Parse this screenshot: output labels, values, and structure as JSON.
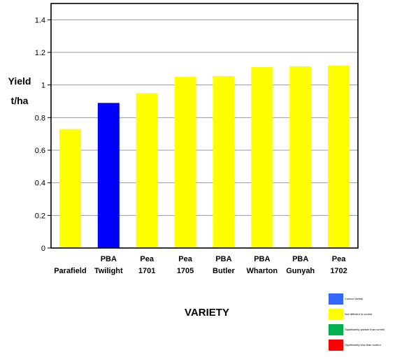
{
  "chart_data": {
    "type": "bar",
    "categories": [
      [
        "",
        "Parafield"
      ],
      [
        "PBA",
        "Twilight"
      ],
      [
        "Pea",
        "1701"
      ],
      [
        "Pea",
        "1705"
      ],
      [
        "PBA",
        "Butler"
      ],
      [
        "PBA",
        "Wharton"
      ],
      [
        "PBA",
        "Gunyah"
      ],
      [
        "Pea",
        "1702"
      ]
    ],
    "values": [
      0.73,
      0.89,
      0.95,
      1.05,
      1.055,
      1.11,
      1.115,
      1.12
    ],
    "bar_colors": [
      "#ffff00",
      "#0000ff",
      "#ffff00",
      "#ffff00",
      "#ffff00",
      "#ffff00",
      "#ffff00",
      "#ffff00"
    ],
    "ylabel": [
      "Yield",
      "t/ha"
    ],
    "xlabel": "VARIETY",
    "ylim": [
      0,
      1.5
    ],
    "yticks": [
      "0",
      "0.2",
      "0.4",
      "0.6",
      "0.8",
      "1",
      "1.2",
      "1.4"
    ],
    "grid": "horizontal",
    "legend": {
      "placement": "bottom-right",
      "entries": [
        {
          "label": "Control Variety",
          "color": "#3366ff"
        },
        {
          "label": "Not different to control",
          "color": "#ffff00"
        },
        {
          "label": "Significantly greater than control",
          "color": "#00b050"
        },
        {
          "label": "Significantly less than control",
          "color": "#ff0000"
        }
      ]
    }
  }
}
